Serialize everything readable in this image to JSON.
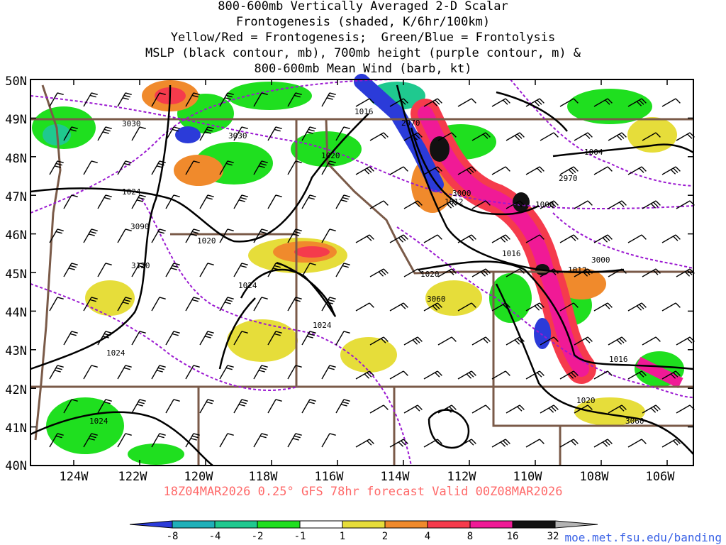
{
  "title_lines": [
    "800-600mb Vertically Averaged 2-D Scalar",
    "Frontogenesis (shaded, K/6hr/100km)",
    "Yellow/Red = Frontogenesis;  Green/Blue = Frontolysis",
    "MSLP (black contour, mb), 700mb height (purple contour, m) &",
    "800-600mb Mean Wind (barb, kt)"
  ],
  "lat_labels": [
    "50N",
    "49N",
    "48N",
    "47N",
    "46N",
    "45N",
    "44N",
    "43N",
    "42N",
    "41N",
    "40N"
  ],
  "lon_labels": [
    "124W",
    "122W",
    "120W",
    "118W",
    "116W",
    "114W",
    "112W",
    "110W",
    "108W",
    "106W"
  ],
  "mslp_labels": [
    "1016",
    "1020",
    "1024",
    "1024",
    "1020",
    "1024",
    "1024",
    "1024",
    "1012",
    "1008",
    "1016",
    "1020",
    "1012",
    "1016",
    "1020",
    "1004"
  ],
  "height_labels": [
    "3030",
    "3030",
    "3090",
    "3120",
    "2970",
    "3000",
    "2970",
    "3000",
    "3060",
    "3060"
  ],
  "footer": "18Z04MAR2026 0.25° GFS 78hr forecast Valid 00Z08MAR2026",
  "credit": "moe.met.fsu.edu/banding",
  "legend": {
    "labels": [
      "-8",
      "-4",
      "-2",
      "-1",
      "1",
      "2",
      "4",
      "8",
      "16",
      "32"
    ],
    "colors": [
      "#2b3bd9",
      "#1fb0b9",
      "#1fc98f",
      "#1fdf1f",
      "#ffffff",
      "#e6dd3a",
      "#f08a2c",
      "#f53b4c",
      "#f01a96",
      "#111111",
      "#b3b3b3"
    ]
  },
  "colors": {
    "border": "#7a5a48",
    "mslp": "#000000",
    "height": "#9b19d1",
    "footer": "#ff6a6a",
    "credit": "#3a62e6"
  }
}
